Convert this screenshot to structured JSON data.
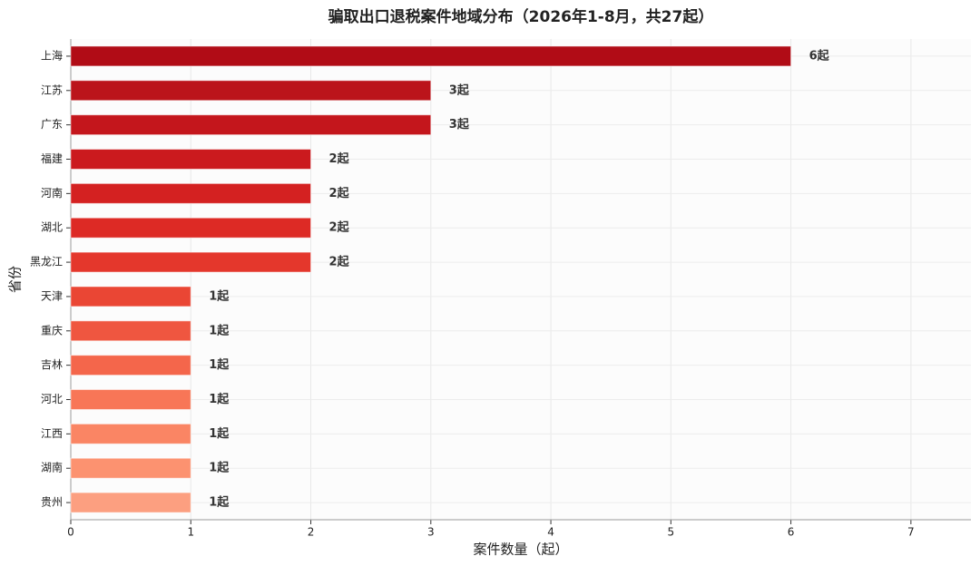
{
  "chart_data": {
    "type": "barh",
    "title": "骗取出口退税案件地域分布（2026年1-8月，共27起）",
    "xlabel": "案件数量（起）",
    "ylabel": "省份",
    "categories": [
      "上海",
      "江苏",
      "广东",
      "福建",
      "河南",
      "湖北",
      "黑龙江",
      "天津",
      "重庆",
      "吉林",
      "河北",
      "江西",
      "湖南",
      "贵州"
    ],
    "values": [
      6,
      3,
      3,
      2,
      2,
      2,
      2,
      1,
      1,
      1,
      1,
      1,
      1,
      1
    ],
    "value_labels": [
      "6起",
      "3起",
      "3起",
      "2起",
      "2起",
      "2起",
      "2起",
      "1起",
      "1起",
      "1起",
      "1起",
      "1起",
      "1起",
      "1起"
    ],
    "colors": [
      "#b10c16",
      "#bb141b",
      "#c4161c",
      "#cb1a1e",
      "#d42121",
      "#dd2a25",
      "#e4372c",
      "#ea4634",
      "#ef5640",
      "#f4664b",
      "#f87657",
      "#fa8564",
      "#fc9270",
      "#fc9f80"
    ],
    "xlim": [
      0,
      7.5
    ],
    "xticks": [
      0,
      1,
      2,
      3,
      4,
      5,
      6,
      7
    ],
    "grid": true
  }
}
